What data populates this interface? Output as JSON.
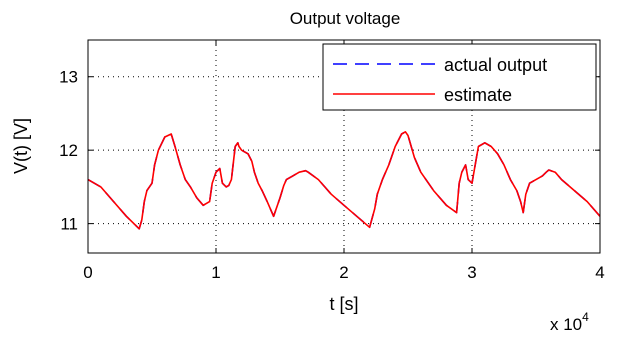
{
  "chart_data": {
    "type": "line",
    "title": "Output voltage",
    "xlabel": "t [s]",
    "ylabel": "V(t) [V]",
    "x_multiplier": "x 10",
    "x_multiplier_exp": "4",
    "xlim": [
      0,
      4
    ],
    "ylim": [
      10.6,
      13.5
    ],
    "xticks": [
      0,
      1,
      2,
      3,
      4
    ],
    "yticks": [
      11,
      12,
      13
    ],
    "grid": true,
    "legend_position": "top-right",
    "series": [
      {
        "name": "actual output",
        "color": "#0000ff",
        "style": "dashed",
        "x": [
          0,
          0.1,
          0.2,
          0.3,
          0.4,
          0.42,
          0.44,
          0.46,
          0.5,
          0.52,
          0.55,
          0.6,
          0.65,
          0.68,
          0.72,
          0.76,
          0.8,
          0.85,
          0.9,
          0.95,
          0.97,
          1.0,
          1.03,
          1.05,
          1.08,
          1.1,
          1.12,
          1.15,
          1.17,
          1.18,
          1.2,
          1.25,
          1.28,
          1.3,
          1.33,
          1.36,
          1.4,
          1.45,
          1.5,
          1.53,
          1.55,
          1.6,
          1.65,
          1.7,
          1.72,
          1.8,
          1.85,
          1.9,
          2.0,
          2.1,
          2.2,
          2.24,
          2.26,
          2.3,
          2.35,
          2.4,
          2.45,
          2.48,
          2.5,
          2.55,
          2.6,
          2.7,
          2.8,
          2.88,
          2.9,
          2.92,
          2.95,
          2.97,
          3.0,
          3.05,
          3.1,
          3.15,
          3.2,
          3.25,
          3.3,
          3.35,
          3.38,
          3.4,
          3.42,
          3.45,
          3.5,
          3.55,
          3.58,
          3.6,
          3.65,
          3.7,
          3.8,
          3.9,
          4.0
        ],
        "y": [
          11.6,
          11.5,
          11.3,
          11.1,
          10.93,
          11.05,
          11.3,
          11.45,
          11.55,
          11.8,
          12.0,
          12.18,
          12.22,
          12.05,
          11.8,
          11.6,
          11.5,
          11.35,
          11.25,
          11.3,
          11.55,
          11.7,
          11.75,
          11.55,
          11.5,
          11.52,
          11.6,
          12.05,
          12.1,
          12.05,
          12.0,
          11.95,
          11.85,
          11.7,
          11.55,
          11.45,
          11.3,
          11.1,
          11.35,
          11.52,
          11.6,
          11.65,
          11.7,
          11.72,
          11.7,
          11.6,
          11.5,
          11.4,
          11.25,
          11.1,
          10.95,
          11.2,
          11.4,
          11.6,
          11.8,
          12.05,
          12.22,
          12.25,
          12.2,
          11.9,
          11.7,
          11.45,
          11.25,
          11.15,
          11.55,
          11.7,
          11.8,
          11.6,
          11.55,
          12.05,
          12.1,
          12.05,
          11.95,
          11.8,
          11.6,
          11.45,
          11.3,
          11.15,
          11.4,
          11.55,
          11.6,
          11.65,
          11.7,
          11.73,
          11.7,
          11.6,
          11.45,
          11.3,
          11.1
        ]
      },
      {
        "name": "estimate",
        "color": "#ff0000",
        "style": "solid",
        "x": [
          0,
          0.1,
          0.2,
          0.3,
          0.4,
          0.42,
          0.44,
          0.46,
          0.5,
          0.52,
          0.55,
          0.6,
          0.65,
          0.68,
          0.72,
          0.76,
          0.8,
          0.85,
          0.9,
          0.95,
          0.97,
          1.0,
          1.03,
          1.05,
          1.08,
          1.1,
          1.12,
          1.15,
          1.17,
          1.18,
          1.2,
          1.25,
          1.28,
          1.3,
          1.33,
          1.36,
          1.4,
          1.45,
          1.5,
          1.53,
          1.55,
          1.6,
          1.65,
          1.7,
          1.72,
          1.8,
          1.85,
          1.9,
          2.0,
          2.1,
          2.2,
          2.24,
          2.26,
          2.3,
          2.35,
          2.4,
          2.45,
          2.48,
          2.5,
          2.55,
          2.6,
          2.7,
          2.8,
          2.88,
          2.9,
          2.92,
          2.95,
          2.97,
          3.0,
          3.05,
          3.1,
          3.15,
          3.2,
          3.25,
          3.3,
          3.35,
          3.38,
          3.4,
          3.42,
          3.45,
          3.5,
          3.55,
          3.58,
          3.6,
          3.65,
          3.7,
          3.8,
          3.9,
          4.0
        ],
        "y": [
          11.6,
          11.5,
          11.3,
          11.1,
          10.93,
          11.05,
          11.3,
          11.45,
          11.55,
          11.8,
          12.0,
          12.18,
          12.22,
          12.05,
          11.8,
          11.6,
          11.5,
          11.35,
          11.25,
          11.3,
          11.55,
          11.7,
          11.75,
          11.55,
          11.5,
          11.52,
          11.6,
          12.05,
          12.1,
          12.05,
          12.0,
          11.95,
          11.85,
          11.7,
          11.55,
          11.45,
          11.3,
          11.1,
          11.35,
          11.52,
          11.6,
          11.65,
          11.7,
          11.72,
          11.7,
          11.6,
          11.5,
          11.4,
          11.25,
          11.1,
          10.95,
          11.2,
          11.4,
          11.6,
          11.8,
          12.05,
          12.22,
          12.25,
          12.2,
          11.9,
          11.7,
          11.45,
          11.25,
          11.15,
          11.55,
          11.7,
          11.8,
          11.6,
          11.55,
          12.05,
          12.1,
          12.05,
          11.95,
          11.8,
          11.6,
          11.45,
          11.3,
          11.15,
          11.4,
          11.55,
          11.6,
          11.65,
          11.7,
          11.73,
          11.7,
          11.6,
          11.45,
          11.3,
          11.1
        ]
      }
    ]
  }
}
